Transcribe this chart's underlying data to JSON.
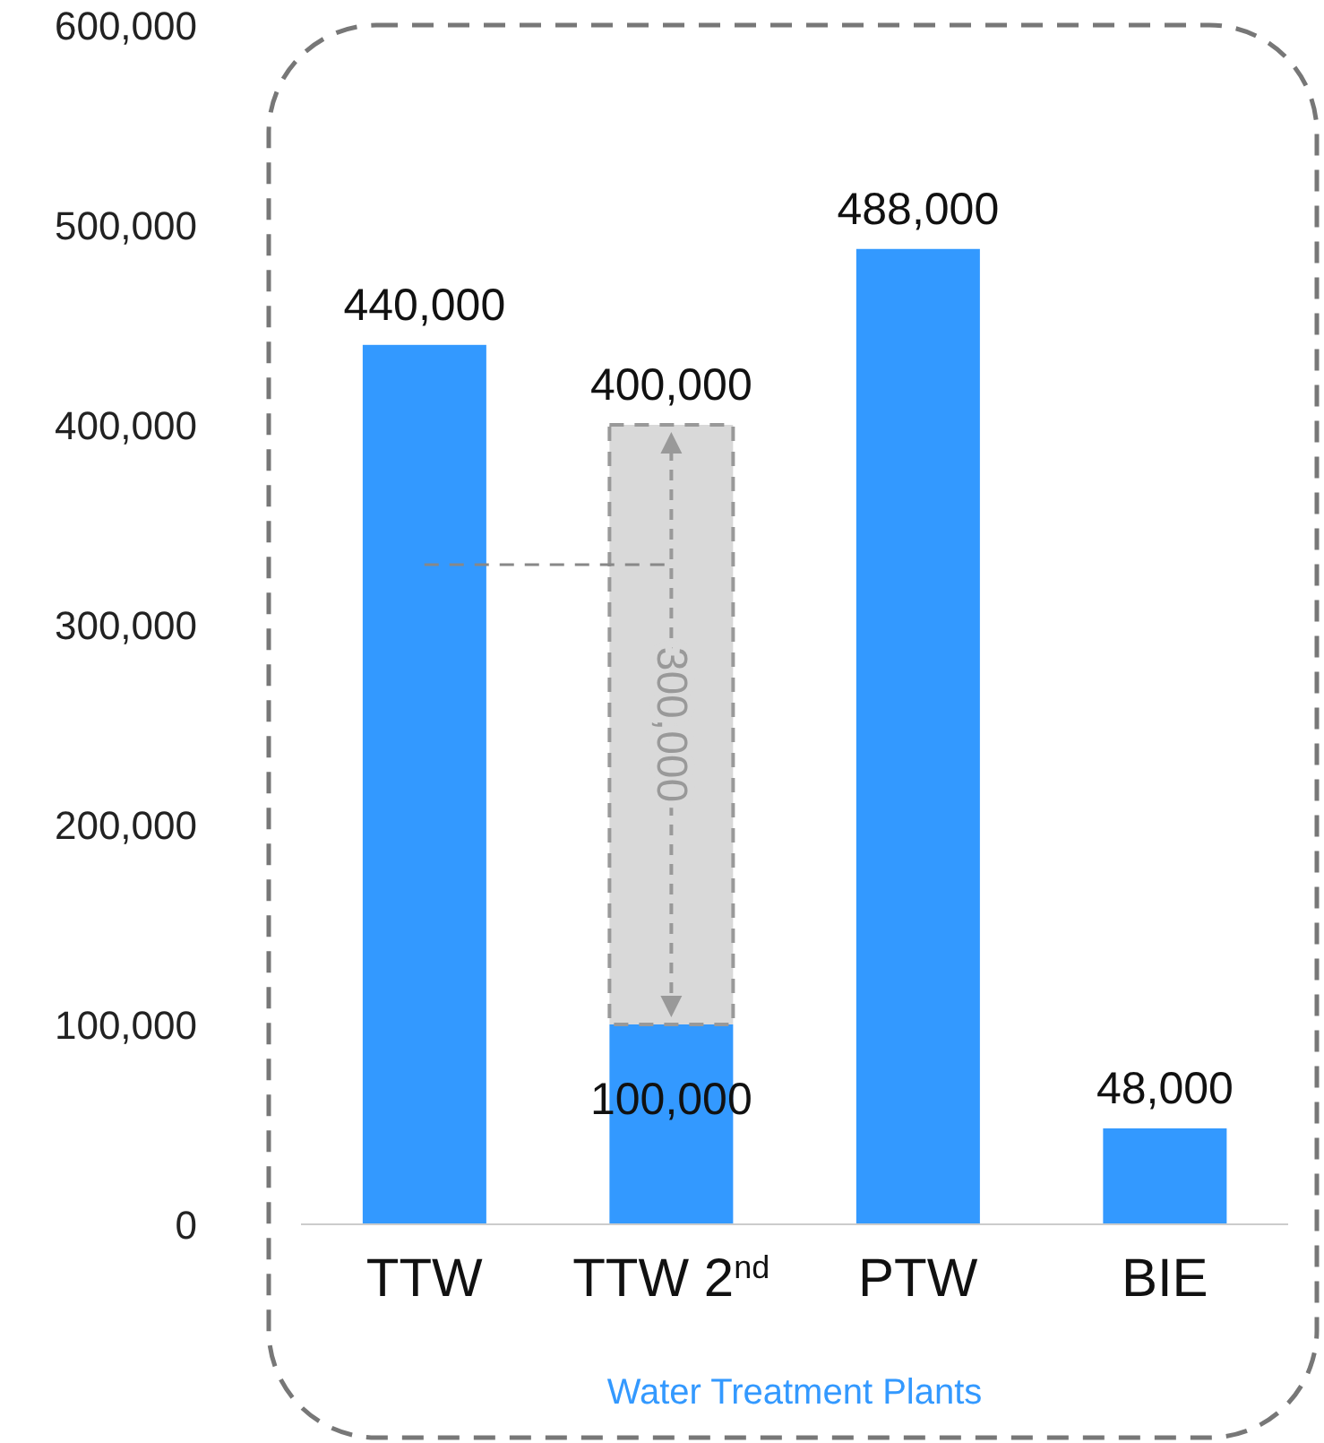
{
  "chart_data": {
    "type": "bar",
    "stacked": true,
    "xlabel": "Water Treatment Plants",
    "categories": [
      "TTW",
      "TTW 2$^{nd}$",
      "PTW",
      "BIE"
    ],
    "series": [
      {
        "color": "#3399ff",
        "values": [
          440000,
          100000,
          488000,
          48000
        ],
        "value_labels": [
          "440,000",
          "100,000",
          "488,000",
          "48,000"
        ]
      },
      {
        "color": "#d9d9d9",
        "line_style": "dashed",
        "values": [
          null,
          300000,
          null,
          null
        ],
        "value_labels": [
          null,
          "300,000",
          null,
          null
        ]
      }
    ],
    "totals": [
      null,
      "400,000",
      null,
      null
    ],
    "ylim": [
      0,
      600000
    ],
    "yticks": [
      {
        "value": 0,
        "label": "0"
      },
      {
        "value": 100000,
        "label": "100,000"
      },
      {
        "value": 200000,
        "label": "200,000"
      },
      {
        "value": 300000,
        "label": "300,000"
      },
      {
        "value": 400000,
        "label": "400,000"
      },
      {
        "value": 500000,
        "label": "500,000"
      },
      {
        "value": 600000,
        "label": "600,000"
      }
    ],
    "ref_lines": [
      {
        "axis": "y",
        "value": 330000,
        "color": "#888888",
        "line_style": "dashed"
      }
    ],
    "grid": false
  }
}
